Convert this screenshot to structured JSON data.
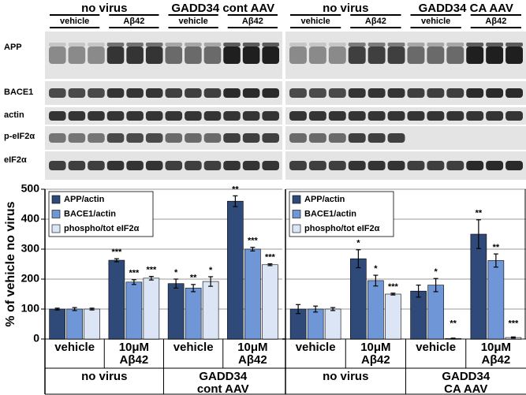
{
  "blot": {
    "row_labels": [
      "APP",
      "BACE1",
      "actin",
      "p-eIF2α",
      "eIF2α"
    ],
    "panels": [
      {
        "groups": [
          {
            "title": "no virus",
            "lanes": [
              "vehicle",
              "Aβ42"
            ]
          },
          {
            "title": "GADD34 cont AAV",
            "lanes": [
              "vehicle",
              "Aβ42"
            ]
          }
        ]
      },
      {
        "groups": [
          {
            "title": "no virus",
            "lanes": [
              "vehicle",
              "Aβ42"
            ]
          },
          {
            "title": "GADD34 CA AAV",
            "lanes": [
              "vehicle",
              "Aβ42"
            ]
          }
        ]
      }
    ]
  },
  "chart_data": [
    {
      "type": "bar",
      "ylabel": "% of vehicle no virus",
      "categories": [
        [
          "vehicle"
        ],
        [
          "10μM",
          "Aβ42"
        ],
        [
          "vehicle"
        ],
        [
          "10μM",
          "Aβ42"
        ]
      ],
      "groups": [
        [
          "no virus"
        ],
        [
          "GADD34",
          "cont AAV"
        ]
      ],
      "ylim": [
        0,
        500
      ],
      "yticks": [
        0,
        100,
        200,
        300,
        400,
        500
      ],
      "ytick_labels": true,
      "grid": true,
      "legend": "upper left",
      "series": [
        {
          "name": "APP/actin",
          "color": "#2f4a78",
          "values": [
            100,
            263,
            185,
            460
          ],
          "errors": [
            3,
            5,
            15,
            18
          ],
          "significance": [
            null,
            "***",
            "*",
            "**"
          ]
        },
        {
          "name": "BACE1/actin",
          "color": "#6f97d8",
          "values": [
            100,
            190,
            170,
            300
          ],
          "errors": [
            5,
            8,
            12,
            6
          ],
          "significance": [
            null,
            "***",
            "**",
            "***"
          ]
        },
        {
          "name": "phospho/tot eIF2α",
          "color": "#dbe5f5",
          "values": [
            100,
            203,
            192,
            248
          ],
          "errors": [
            3,
            6,
            16,
            3
          ],
          "significance": [
            null,
            "***",
            "*",
            "***"
          ]
        }
      ]
    },
    {
      "type": "bar",
      "categories": [
        [
          "vehicle"
        ],
        [
          "10μM",
          "Aβ42"
        ],
        [
          "vehicle"
        ],
        [
          "10μM",
          "Aβ42"
        ]
      ],
      "groups": [
        [
          "no virus"
        ],
        [
          "GADD34",
          "CA AAV"
        ]
      ],
      "ylim": [
        0,
        500
      ],
      "yticks": [
        0,
        100,
        200,
        300,
        400,
        500
      ],
      "ytick_labels": false,
      "grid": true,
      "legend": "upper left",
      "series": [
        {
          "name": "APP/actin",
          "color": "#2f4a78",
          "values": [
            100,
            268,
            160,
            350
          ],
          "errors": [
            15,
            30,
            20,
            48
          ],
          "significance": [
            null,
            "*",
            null,
            "**"
          ]
        },
        {
          "name": "BACE1/actin",
          "color": "#6f97d8",
          "values": [
            100,
            195,
            180,
            262
          ],
          "errors": [
            10,
            18,
            22,
            22
          ],
          "significance": [
            null,
            "*",
            "*",
            "**"
          ]
        },
        {
          "name": "phospho/tot eIF2α",
          "color": "#dbe5f5",
          "values": [
            100,
            150,
            2,
            5
          ],
          "errors": [
            5,
            3,
            1,
            2
          ],
          "significance": [
            null,
            "***",
            "**",
            "***"
          ]
        }
      ]
    }
  ]
}
